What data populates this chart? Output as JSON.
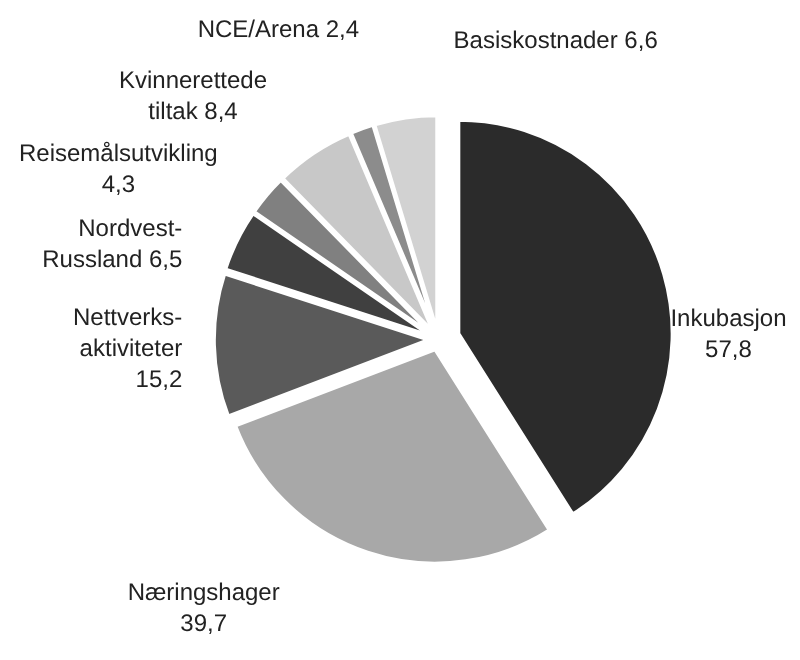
{
  "chart_data": {
    "type": "pie",
    "categories": [
      "Inkubasjon",
      "Næringshager",
      "Nettverks-\naktiviteter",
      "Nordvest-\nRussland",
      "Reisemålsutvikling",
      "Kvinnerettede\ntiltak",
      "NCE/Arena",
      "Basiskostnader"
    ],
    "values": [
      57.8,
      39.7,
      15.2,
      6.5,
      4.3,
      8.4,
      2.4,
      6.6
    ],
    "value_labels": [
      "57,8",
      "39,7",
      "15,2",
      "6,5",
      "4,3",
      "8,4",
      "2,4",
      "6,6"
    ],
    "colors": [
      "#2b2b2b",
      "#a8a8a8",
      "#5a5a5a",
      "#404040",
      "#808080",
      "#c8c8c8",
      "#8c8c8c",
      "#d2d2d2"
    ]
  }
}
